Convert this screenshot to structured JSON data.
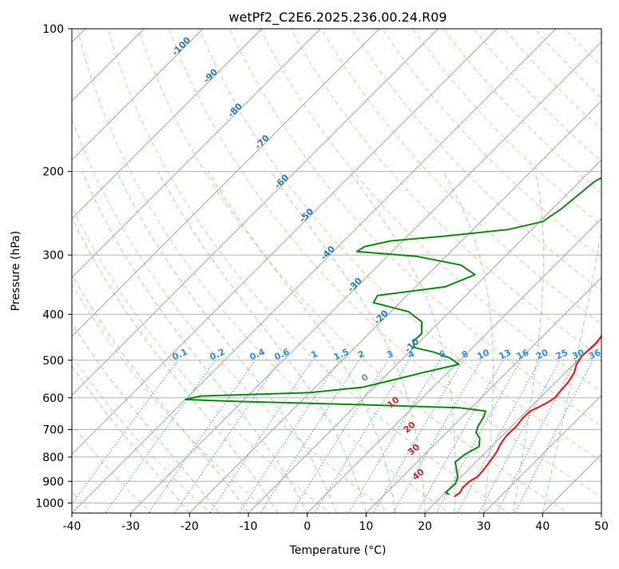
{
  "chart_data": {
    "type": "line",
    "title": "wetPf2_C2E6.2025.236.00.24.R09",
    "xlabel": "Temperature (°C)",
    "ylabel": "Pressure (hPa)",
    "xlim": [
      -40,
      50
    ],
    "ylim": [
      1050,
      100
    ],
    "y_scale": "log",
    "x_ticks": [
      -40,
      -30,
      -20,
      -10,
      0,
      10,
      20,
      30,
      40,
      50
    ],
    "y_ticks": [
      100,
      200,
      300,
      400,
      500,
      600,
      700,
      800,
      900,
      1000
    ],
    "grid": true,
    "colors": {
      "temperature": "#ee1111",
      "dewpoint": "#118811",
      "dry_adiabat": "#f4a583",
      "moist_adiabat": "#7fc77f",
      "mixing_ratio": "#3d8fe0",
      "isotherm": "#9a9a9a",
      "label_blue": "#2a7ab8",
      "label_mix": "#2f8de4",
      "label_red": "#d62728"
    },
    "series": [
      {
        "name": "Temperature",
        "points": [
          [
            22.2,
            970
          ],
          [
            22.5,
            950
          ],
          [
            22.1,
            930
          ],
          [
            22.2,
            900
          ],
          [
            22.8,
            880
          ],
          [
            22.6,
            850
          ],
          [
            22.3,
            820
          ],
          [
            21.8,
            780
          ],
          [
            21.1,
            750
          ],
          [
            20.7,
            720
          ],
          [
            20.8,
            690
          ],
          [
            20.5,
            660
          ],
          [
            20.6,
            640
          ],
          [
            21.2,
            630
          ],
          [
            22.0,
            615
          ],
          [
            22.5,
            600
          ],
          [
            22.3,
            580
          ],
          [
            22.1,
            555
          ],
          [
            21.5,
            530
          ],
          [
            20.5,
            510
          ],
          [
            20.0,
            490
          ],
          [
            20.3,
            460
          ],
          [
            19.8,
            440
          ],
          [
            19.2,
            420
          ],
          [
            18.6,
            400
          ],
          [
            17.8,
            380
          ],
          [
            16.8,
            360
          ],
          [
            16.0,
            340
          ],
          [
            15.3,
            320
          ],
          [
            14.4,
            300
          ],
          [
            12.5,
            280
          ],
          [
            10.2,
            260
          ],
          [
            8.5,
            240
          ],
          [
            7.0,
            220
          ],
          [
            5.2,
            200
          ],
          [
            2.6,
            180
          ],
          [
            0.5,
            160
          ],
          [
            -1.0,
            145
          ],
          [
            -2.0,
            135
          ],
          [
            -2.6,
            125
          ],
          [
            -2.6,
            118
          ],
          [
            -1.5,
            110
          ],
          [
            0.5,
            104
          ],
          [
            3.0,
            100
          ]
        ]
      },
      {
        "name": "Dewpoint",
        "points": [
          [
            21.0,
            960
          ],
          [
            20.0,
            950
          ],
          [
            20.2,
            910
          ],
          [
            19.4,
            880
          ],
          [
            18.0,
            850
          ],
          [
            16.5,
            820
          ],
          [
            16.8,
            790
          ],
          [
            17.9,
            760
          ],
          [
            16.6,
            730
          ],
          [
            15.0,
            710
          ],
          [
            14.3,
            690
          ],
          [
            13.7,
            660
          ],
          [
            13.0,
            640
          ],
          [
            8.0,
            630
          ],
          [
            -10.0,
            620
          ],
          [
            -30.0,
            611
          ],
          [
            -40.0,
            605
          ],
          [
            -38.0,
            595
          ],
          [
            -20.0,
            585
          ],
          [
            -12.0,
            570
          ],
          [
            -8.0,
            550
          ],
          [
            -4.0,
            530
          ],
          [
            0.5,
            510
          ],
          [
            -2.0,
            495
          ],
          [
            -6.0,
            480
          ],
          [
            -10.0,
            470
          ],
          [
            -11.2,
            455
          ],
          [
            -11.0,
            440
          ],
          [
            -13.0,
            415
          ],
          [
            -17.0,
            395
          ],
          [
            -24.5,
            378
          ],
          [
            -25.0,
            365
          ],
          [
            -15.0,
            350
          ],
          [
            -12.0,
            330
          ],
          [
            -16.0,
            315
          ],
          [
            -25.0,
            302
          ],
          [
            -36.0,
            295
          ],
          [
            -35.5,
            288
          ],
          [
            -32.0,
            280
          ],
          [
            -24.0,
            274
          ],
          [
            -14.0,
            265
          ],
          [
            -9.5,
            255
          ],
          [
            -8.5,
            240
          ],
          [
            -8.0,
            225
          ],
          [
            -7.5,
            210
          ],
          [
            -6.0,
            200
          ],
          [
            -3.5,
            185
          ],
          [
            -3.5,
            170
          ],
          [
            -3.5,
            160
          ],
          [
            -3.0,
            140
          ],
          [
            -3.0,
            125
          ],
          [
            -2.0,
            115
          ],
          [
            0.0,
            108
          ],
          [
            1.5,
            100
          ]
        ]
      }
    ],
    "mixing_ratio_labels": [
      "0.1",
      "0.2",
      "0.4",
      "0.6",
      "1",
      "1.5",
      "2",
      "3",
      "4",
      "6",
      "8",
      "10",
      "13",
      "16",
      "20",
      "25",
      "30",
      "36"
    ],
    "isotherm_labels": [
      {
        "text": "-100",
        "temp": -100
      },
      {
        "text": "-90",
        "temp": -90
      },
      {
        "text": "-80",
        "temp": -80
      },
      {
        "text": "-70",
        "temp": -70
      },
      {
        "text": "-60",
        "temp": -60
      },
      {
        "text": "-50",
        "temp": -50
      },
      {
        "text": "-40",
        "temp": -40
      },
      {
        "text": "-30",
        "temp": -30
      },
      {
        "text": "-20",
        "temp": -20
      },
      {
        "text": "-10",
        "temp": -10
      }
    ],
    "adiabat_labels": [
      "0",
      "10",
      "20",
      "30",
      "40"
    ]
  }
}
